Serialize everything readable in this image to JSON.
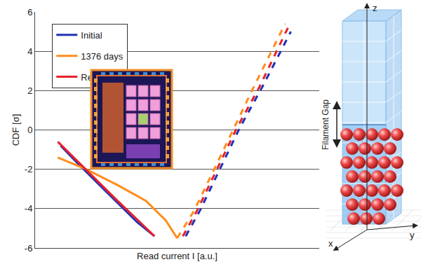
{
  "chart_data": {
    "type": "line",
    "xlabel": "Read current I [a.u.]",
    "ylabel": "CDF [σ]",
    "xlim": [
      0,
      100
    ],
    "ylim": [
      -6,
      6
    ],
    "yticks": [
      -6,
      -4,
      -2,
      0,
      2,
      4,
      6
    ],
    "grid": true,
    "legend": "upper left",
    "tick_labels": "y",
    "series": [
      {
        "name": "Initial",
        "color": "#2231b5",
        "line_style": "solid",
        "x": [
          9,
          15,
          22,
          29,
          36,
          42
        ],
        "values": [
          -0.8,
          -1.7,
          -2.7,
          -3.7,
          -4.7,
          -5.4
        ]
      },
      {
        "name": "Initial",
        "color": "#2231b5",
        "line_style": "dash",
        "x": [
          53,
          58,
          65,
          72,
          80,
          90
        ],
        "values": [
          -5.4,
          -4.1,
          -2.0,
          0.1,
          2.2,
          5.0
        ]
      },
      {
        "name": "1376 days",
        "color": "#ff8c1a",
        "line_style": "solid",
        "x": [
          8,
          18,
          29,
          39,
          46,
          50
        ],
        "values": [
          -1.4,
          -2.0,
          -2.8,
          -3.6,
          -4.6,
          -5.5
        ]
      },
      {
        "name": "1376 days",
        "color": "#ff8c1a",
        "line_style": "dash",
        "x": [
          50,
          56,
          63,
          70,
          77,
          88
        ],
        "values": [
          -5.5,
          -4.1,
          -2.0,
          0.1,
          2.2,
          5.4
        ]
      },
      {
        "name": "Re-write",
        "color": "#e8202a",
        "line_style": "solid",
        "x": [
          8,
          15,
          22,
          29,
          37,
          42
        ],
        "values": [
          -0.6,
          -1.6,
          -2.6,
          -3.6,
          -4.7,
          -5.4
        ]
      },
      {
        "name": "Re-write",
        "color": "#e8202a",
        "line_style": "dash",
        "x": [
          52,
          57,
          64,
          71,
          79,
          89
        ],
        "values": [
          -5.4,
          -4.1,
          -2.0,
          0.1,
          2.2,
          5.2
        ]
      }
    ]
  },
  "inset_diagram": {
    "axis_z": "z",
    "axis_y": "y",
    "axis_x": "x",
    "gap_label": "Filament Gap"
  }
}
